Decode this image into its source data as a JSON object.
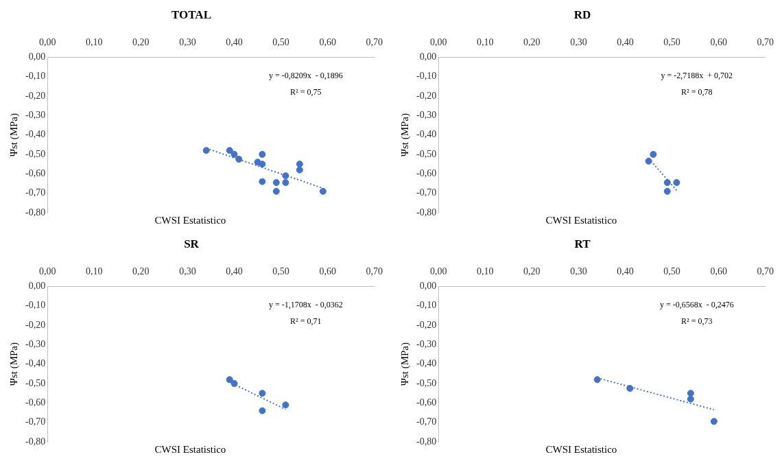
{
  "chart_data": [
    {
      "type": "scatter",
      "title": "TOTAL",
      "xlabel": "CWSI Estatistico",
      "ylabel": "Ψst (MPa)",
      "marker": "circle",
      "xlim": [
        0,
        0.7
      ],
      "ylim": [
        -0.8,
        0
      ],
      "xticks": [
        {
          "value": 0,
          "label": "0,00"
        },
        {
          "value": 0.1,
          "label": "0,10"
        },
        {
          "value": 0.2,
          "label": "0,20"
        },
        {
          "value": 0.3,
          "label": "0,30"
        },
        {
          "value": 0.4,
          "label": "0,40"
        },
        {
          "value": 0.5,
          "label": "0,50"
        },
        {
          "value": 0.6,
          "label": "0,60"
        },
        {
          "value": 0.7,
          "label": "0,70"
        }
      ],
      "yticks": [
        {
          "value": 0,
          "label": "0,00"
        },
        {
          "value": -0.1,
          "label": "-0,10"
        },
        {
          "value": -0.2,
          "label": "-0,20"
        },
        {
          "value": -0.3,
          "label": "-0,30"
        },
        {
          "value": -0.4,
          "label": "-0,40"
        },
        {
          "value": -0.5,
          "label": "-0,50"
        },
        {
          "value": -0.6,
          "label": "-0,60"
        },
        {
          "value": -0.7,
          "label": "-0,70"
        },
        {
          "value": -0.8,
          "label": "-0,80"
        }
      ],
      "annotations": [
        "y = -0,8209x  - 0,1896",
        "R² = 0,75"
      ],
      "series": [
        {
          "color": "#4472c4",
          "x": [
            0.34,
            0.39,
            0.4,
            0.41,
            0.45,
            0.46,
            0.46,
            0.46,
            0.49,
            0.49,
            0.51,
            0.51,
            0.54,
            0.54,
            0.59
          ],
          "values": [
            -0.48,
            -0.48,
            -0.5,
            -0.525,
            -0.54,
            -0.5,
            -0.55,
            -0.64,
            -0.645,
            -0.69,
            -0.61,
            -0.645,
            -0.55,
            -0.58,
            -0.69
          ]
        },
        {
          "type": "line",
          "marker": "none",
          "color": "#4472c4",
          "line_style": "dotted",
          "x": [
            0.34,
            0.59
          ],
          "values": [
            -0.469,
            -0.674
          ]
        }
      ]
    },
    {
      "type": "scatter",
      "title": "RD",
      "xlabel": "CWSI Estatistico",
      "ylabel": "Ψst (MPa)",
      "marker": "circle",
      "xlim": [
        0,
        0.7
      ],
      "ylim": [
        -0.8,
        0
      ],
      "xticks": [
        {
          "value": 0,
          "label": "0,00"
        },
        {
          "value": 0.1,
          "label": "0,10"
        },
        {
          "value": 0.2,
          "label": "0,20"
        },
        {
          "value": 0.3,
          "label": "0,30"
        },
        {
          "value": 0.4,
          "label": "0,40"
        },
        {
          "value": 0.5,
          "label": "0,50"
        },
        {
          "value": 0.6,
          "label": "0,60"
        },
        {
          "value": 0.7,
          "label": "0,70"
        }
      ],
      "yticks": [
        {
          "value": 0,
          "label": "0,00"
        },
        {
          "value": -0.1,
          "label": "-0,10"
        },
        {
          "value": -0.2,
          "label": "-0,20"
        },
        {
          "value": -0.3,
          "label": "-0,30"
        },
        {
          "value": -0.4,
          "label": "-0,40"
        },
        {
          "value": -0.5,
          "label": "-0,50"
        },
        {
          "value": -0.6,
          "label": "-0,60"
        },
        {
          "value": -0.7,
          "label": "-0,70"
        },
        {
          "value": -0.8,
          "label": "-0,80"
        }
      ],
      "annotations": [
        "y = -2,7188x  + 0,702",
        "R² = 0,78"
      ],
      "series": [
        {
          "color": "#4472c4",
          "x": [
            0.45,
            0.46,
            0.49,
            0.49,
            0.51
          ],
          "values": [
            -0.535,
            -0.5,
            -0.645,
            -0.69,
            -0.645
          ]
        },
        {
          "type": "line",
          "marker": "none",
          "color": "#4472c4",
          "line_style": "dotted",
          "x": [
            0.45,
            0.51
          ],
          "values": [
            -0.521,
            -0.685
          ]
        }
      ]
    },
    {
      "type": "scatter",
      "title": "SR",
      "xlabel": "CWSI Estatistico",
      "ylabel": "Ψst (MPa)",
      "marker": "circle",
      "xlim": [
        0,
        0.7
      ],
      "ylim": [
        -0.8,
        0
      ],
      "xticks": [
        {
          "value": 0,
          "label": "0,00"
        },
        {
          "value": 0.1,
          "label": "0,10"
        },
        {
          "value": 0.2,
          "label": "0,20"
        },
        {
          "value": 0.3,
          "label": "0,30"
        },
        {
          "value": 0.4,
          "label": "0,40"
        },
        {
          "value": 0.5,
          "label": "0,50"
        },
        {
          "value": 0.6,
          "label": "0,60"
        },
        {
          "value": 0.7,
          "label": "0,70"
        }
      ],
      "yticks": [
        {
          "value": 0,
          "label": "0,00"
        },
        {
          "value": -0.1,
          "label": "-0,10"
        },
        {
          "value": -0.2,
          "label": "-0,20"
        },
        {
          "value": -0.3,
          "label": "-0,30"
        },
        {
          "value": -0.4,
          "label": "-0,40"
        },
        {
          "value": -0.5,
          "label": "-0,50"
        },
        {
          "value": -0.6,
          "label": "-0,60"
        },
        {
          "value": -0.7,
          "label": "-0,70"
        },
        {
          "value": -0.8,
          "label": "-0,80"
        }
      ],
      "annotations": [
        "y = -1,1708x  - 0,0362",
        "R² = 0,71"
      ],
      "series": [
        {
          "color": "#4472c4",
          "x": [
            0.39,
            0.4,
            0.46,
            0.46,
            0.51
          ],
          "values": [
            -0.48,
            -0.5,
            -0.55,
            -0.64,
            -0.61
          ]
        },
        {
          "type": "line",
          "marker": "none",
          "color": "#4472c4",
          "line_style": "dotted",
          "x": [
            0.39,
            0.51
          ],
          "values": [
            -0.493,
            -0.633
          ]
        }
      ]
    },
    {
      "type": "scatter",
      "title": "RT",
      "xlabel": "CWSI Estatistico",
      "ylabel": "Ψst (MPa)",
      "marker": "circle",
      "xlim": [
        0,
        0.7
      ],
      "ylim": [
        -0.8,
        0
      ],
      "xticks": [
        {
          "value": 0,
          "label": "0,00"
        },
        {
          "value": 0.1,
          "label": "0,10"
        },
        {
          "value": 0.2,
          "label": "0,20"
        },
        {
          "value": 0.3,
          "label": "0,30"
        },
        {
          "value": 0.4,
          "label": "0,40"
        },
        {
          "value": 0.5,
          "label": "0,50"
        },
        {
          "value": 0.6,
          "label": "0,60"
        },
        {
          "value": 0.7,
          "label": "0,70"
        }
      ],
      "yticks": [
        {
          "value": 0,
          "label": "0,00"
        },
        {
          "value": -0.1,
          "label": "-0,10"
        },
        {
          "value": -0.2,
          "label": "-0,20"
        },
        {
          "value": -0.3,
          "label": "-0,30"
        },
        {
          "value": -0.4,
          "label": "-0,40"
        },
        {
          "value": -0.5,
          "label": "-0,50"
        },
        {
          "value": -0.6,
          "label": "-0,60"
        },
        {
          "value": -0.7,
          "label": "-0,70"
        },
        {
          "value": -0.8,
          "label": "-0,80"
        }
      ],
      "annotations": [
        "y = -0,6568x  - 0,2476",
        "R² = 0,73"
      ],
      "series": [
        {
          "color": "#4472c4",
          "x": [
            0.34,
            0.41,
            0.54,
            0.54,
            0.59
          ],
          "values": [
            -0.48,
            -0.525,
            -0.55,
            -0.58,
            -0.695
          ]
        },
        {
          "type": "line",
          "marker": "none",
          "color": "#4472c4",
          "line_style": "dotted",
          "x": [
            0.34,
            0.59
          ],
          "values": [
            -0.471,
            -0.635
          ]
        }
      ]
    }
  ]
}
